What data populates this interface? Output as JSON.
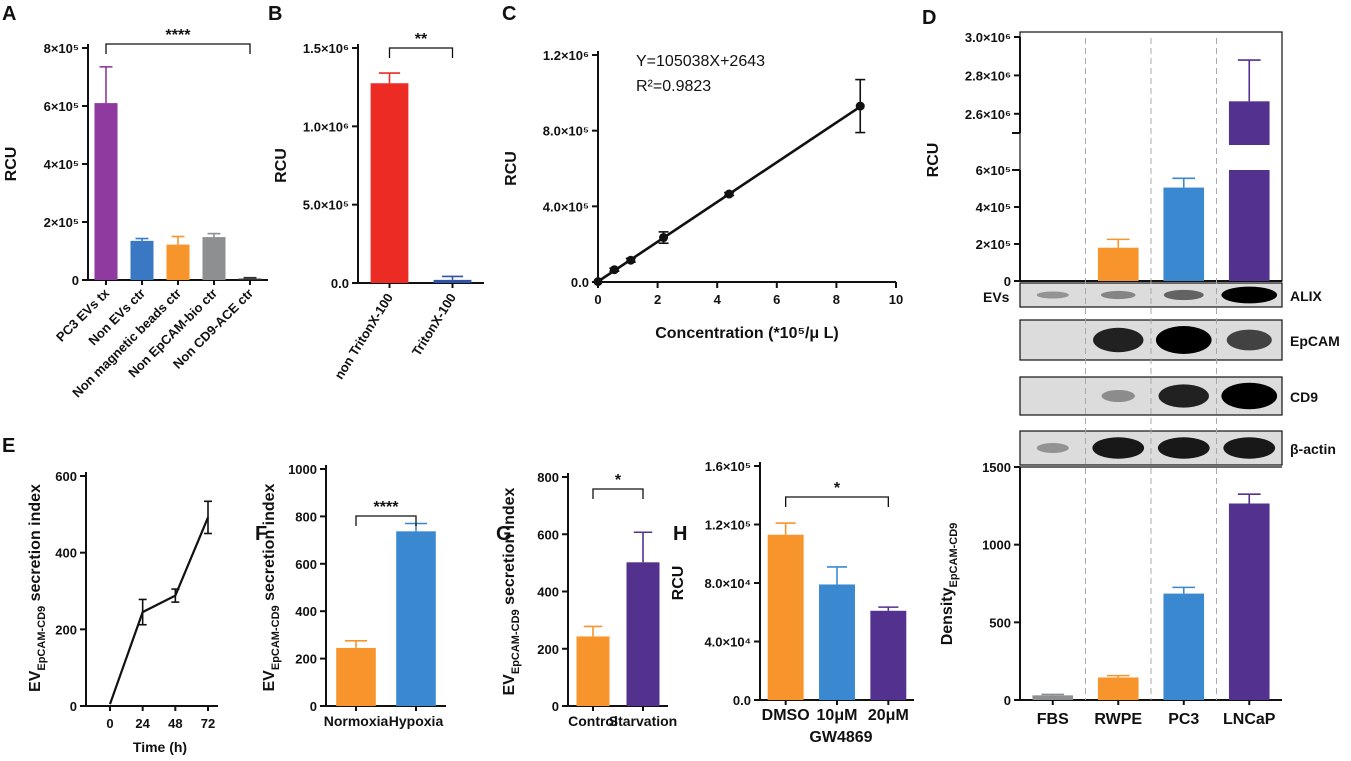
{
  "chart_data": [
    {
      "id": "A",
      "panel_label": "A",
      "type": "bar",
      "ylabel": "RCU",
      "ylim": [
        0,
        800000
      ],
      "yticks": [
        0,
        200000,
        400000,
        600000,
        800000
      ],
      "ytick_labels": [
        "0",
        "2×10⁵",
        "4×10⁵",
        "6×10⁵",
        "8×10⁵"
      ],
      "categories": [
        "PC3 EVs tx",
        "Non EVs ctr",
        "Non magnetic beads ctr",
        "Non EpCAM-bio ctr",
        "Non CD9-ACE ctr"
      ],
      "values": [
        610000,
        135000,
        122000,
        148000,
        5000
      ],
      "errors": [
        125000,
        8000,
        28000,
        12000,
        3000
      ],
      "colors": [
        "#8e3a9e",
        "#3a78c3",
        "#f7952c",
        "#8d8f91",
        "#333333"
      ],
      "significance": {
        "from": 0,
        "to": 4,
        "label": "****"
      }
    },
    {
      "id": "B",
      "panel_label": "B",
      "type": "bar",
      "ylabel": "RCU",
      "ylim": [
        0,
        1500000
      ],
      "yticks": [
        0,
        500000,
        1000000,
        1500000
      ],
      "ytick_labels": [
        "0.0",
        "5.0×10⁵",
        "1.0×10⁶",
        "1.5×10⁶"
      ],
      "categories": [
        "non TritonX-100",
        "TritonX-100"
      ],
      "values": [
        1275000,
        20000
      ],
      "errors": [
        65000,
        22000
      ],
      "colors": [
        "#ec2b24",
        "#2f53a8"
      ],
      "significance": {
        "from": 0,
        "to": 1,
        "label": "**"
      }
    },
    {
      "id": "C",
      "panel_label": "C",
      "type": "scatter",
      "xlabel": "Concentration (*10⁵/μ L)",
      "ylabel": "RCU",
      "xlim": [
        0,
        10
      ],
      "ylim": [
        0,
        1200000
      ],
      "xticks": [
        0,
        2,
        4,
        6,
        8,
        10
      ],
      "xtick_labels": [
        "0",
        "2",
        "4",
        "6",
        "8",
        "10"
      ],
      "yticks": [
        0,
        400000,
        800000,
        1200000
      ],
      "ytick_labels": [
        "0.0",
        "4.0×10⁵",
        "8.0×10⁵",
        "1.2×10⁶"
      ],
      "x": [
        0,
        0.55,
        1.1,
        2.2,
        4.4,
        8.8
      ],
      "y": [
        2000,
        65000,
        115000,
        235000,
        465000,
        930000
      ],
      "errors": [
        0,
        8000,
        10000,
        30000,
        8000,
        140000
      ],
      "fit_line": {
        "slope": 105038,
        "intercept": 2643,
        "x0": 0,
        "x1": 8.8
      },
      "annotations": [
        "Y=105038X+2643",
        "R²=0.9823"
      ]
    },
    {
      "id": "D",
      "panel_label": "D",
      "type": "bar",
      "ylabel": "RCU",
      "axis_break": true,
      "lower_ylim": [
        0,
        600000
      ],
      "lower_yticks": [
        0,
        200000,
        400000,
        600000
      ],
      "lower_ytick_labels": [
        "0",
        "2×10⁵",
        "4×10⁵",
        "6×10⁵"
      ],
      "upper_ylim": [
        2500000,
        3000000
      ],
      "upper_yticks": [
        2600000,
        2800000,
        3000000
      ],
      "upper_ytick_labels": [
        "2.6×10⁶",
        "2.8×10⁶",
        "3.0×10⁶"
      ],
      "categories": [
        "FBS",
        "RWPE",
        "PC3",
        "LNCaP"
      ],
      "values": [
        0,
        180000,
        505000,
        2665000
      ],
      "errors": [
        0,
        45000,
        50000,
        215000
      ],
      "colors": [
        "#8d8f91",
        "#f7952c",
        "#3a88d0",
        "#53318f"
      ]
    },
    {
      "id": "D-blot",
      "type": "table",
      "row_label_left": "EVs",
      "rows": [
        "ALIX",
        "EpCAM",
        "CD9",
        "β-actin"
      ],
      "lanes": [
        "FBS",
        "RWPE",
        "PC3",
        "LNCaP"
      ],
      "intensity": [
        [
          0.1,
          0.2,
          0.4,
          1.0
        ],
        [
          0.0,
          0.8,
          1.0,
          0.6
        ],
        [
          0.0,
          0.15,
          0.8,
          1.0
        ],
        [
          0.1,
          0.85,
          0.85,
          0.85
        ]
      ]
    },
    {
      "id": "D-density",
      "type": "bar",
      "ylabel": "Density",
      "ylabel_sub": "EpCAM-CD9",
      "ylim": [
        0,
        1500
      ],
      "yticks": [
        0,
        500,
        1000,
        1500
      ],
      "ytick_labels": [
        "0",
        "500",
        "1000",
        "1500"
      ],
      "categories": [
        "FBS",
        "RWPE",
        "PC3",
        "LNCaP"
      ],
      "values": [
        30,
        145,
        685,
        1265
      ],
      "errors": [
        6,
        12,
        40,
        60
      ],
      "colors": [
        "#8d8f91",
        "#f7952c",
        "#3a88d0",
        "#53318f"
      ]
    },
    {
      "id": "E",
      "panel_label": "E",
      "type": "line",
      "xlabel": "Time (h)",
      "ylabel": "EV",
      "ylabel_sub": "EpCAM-CD9",
      "ylabel_suffix": " secretion index",
      "xlim": [
        0,
        72
      ],
      "ylim": [
        0,
        600
      ],
      "x": [
        0,
        24,
        48,
        72
      ],
      "xtick_labels": [
        "0",
        "24",
        "48",
        "72"
      ],
      "yticks": [
        0,
        200,
        400,
        600
      ],
      "ytick_labels": [
        "0",
        "200",
        "400",
        "600"
      ],
      "values": [
        5,
        245,
        288,
        492
      ],
      "errors": [
        0,
        33,
        17,
        42
      ]
    },
    {
      "id": "F",
      "panel_label": "F",
      "type": "bar",
      "ylabel": "EV",
      "ylabel_sub": "EpCAM-CD9",
      "ylabel_suffix": " secretion index",
      "ylim": [
        0,
        1000
      ],
      "yticks": [
        0,
        200,
        400,
        600,
        800,
        1000
      ],
      "ytick_labels": [
        "0",
        "200",
        "400",
        "600",
        "800",
        "1000"
      ],
      "categories": [
        "Normoxia",
        "Hypoxia"
      ],
      "values": [
        245,
        737
      ],
      "errors": [
        30,
        33
      ],
      "colors": [
        "#f7952c",
        "#3a88d0"
      ],
      "significance": {
        "from": 0,
        "to": 1,
        "label": "****"
      }
    },
    {
      "id": "G",
      "panel_label": "G",
      "type": "bar",
      "ylabel": "EV",
      "ylabel_sub": "EpCAM-CD9",
      "ylabel_suffix": " secretion index",
      "ylim": [
        0,
        800
      ],
      "yticks": [
        0,
        200,
        400,
        600,
        800
      ],
      "ytick_labels": [
        "0",
        "200",
        "400",
        "600",
        "800"
      ],
      "categories": [
        "Control",
        "Starvation"
      ],
      "values": [
        243,
        502
      ],
      "errors": [
        35,
        105
      ],
      "colors": [
        "#f7952c",
        "#53318f"
      ],
      "significance": {
        "from": 0,
        "to": 1,
        "label": "*"
      }
    },
    {
      "id": "H",
      "panel_label": "H",
      "type": "bar",
      "ylabel": "RCU",
      "xlabel": "GW4869",
      "ylim": [
        0,
        160000
      ],
      "yticks": [
        0,
        40000,
        80000,
        120000,
        160000
      ],
      "ytick_labels": [
        "0.0",
        "4.0×10⁴",
        "8.0×10⁴",
        "1.2×10⁵",
        "1.6×10⁵"
      ],
      "categories": [
        "DMSO",
        "10μM",
        "20μM"
      ],
      "values": [
        113000,
        79000,
        61000
      ],
      "errors": [
        8000,
        12000,
        2500
      ],
      "colors": [
        "#f7952c",
        "#3a88d0",
        "#53318f"
      ],
      "significance": {
        "from": 0,
        "to": 2,
        "label": "*"
      }
    }
  ]
}
